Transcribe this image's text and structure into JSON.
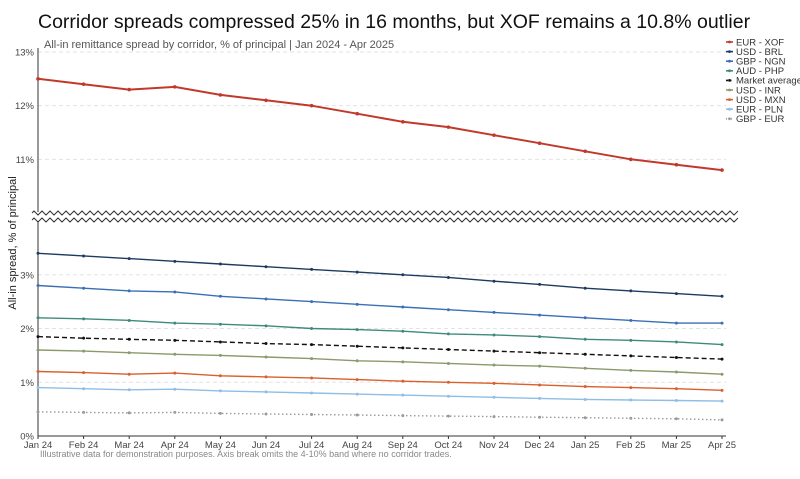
{
  "chart_data": {
    "type": "line",
    "title": "Corridor spreads compressed 25% in 16 months, but XOF remains a 10.8% outlier",
    "subtitle": "All-in remittance spread by corridor, % of principal | Jan 2024 - Apr 2025",
    "ylabel": "All-in spread, % of principal",
    "footnote": "Illustrative data for demonstration purposes. Axis break omits the 4-10% band where no corridor trades.",
    "y_axis_break": [
      4,
      10
    ],
    "lower_ylim": [
      0,
      4
    ],
    "upper_ylim": [
      10,
      13
    ],
    "yticks_lower": [
      0,
      1,
      2,
      3
    ],
    "yticks_upper": [
      11,
      12,
      13
    ],
    "ytick_labels_lower": [
      "0%",
      "1%",
      "2%",
      "3%"
    ],
    "ytick_labels_upper": [
      "11%",
      "12%",
      "13%"
    ],
    "grid": true,
    "legend_position": "top-right",
    "categories": [
      "Jan 24",
      "Feb 24",
      "Mar 24",
      "Apr 24",
      "May 24",
      "Jun 24",
      "Jul 24",
      "Aug 24",
      "Sep 24",
      "Oct 24",
      "Nov 24",
      "Dec 24",
      "Jan 25",
      "Feb 25",
      "Mar 25",
      "Apr 25"
    ],
    "series": [
      {
        "name": "EUR - XOF",
        "color": "#c0392b",
        "style": "solid",
        "values": [
          12.5,
          12.4,
          12.3,
          12.35,
          12.2,
          12.1,
          12.0,
          11.85,
          11.7,
          11.6,
          11.45,
          11.3,
          11.15,
          11.0,
          10.9,
          10.8
        ]
      },
      {
        "name": "USD - BRL",
        "color": "#1f3a5f",
        "style": "solid",
        "values": [
          3.4,
          3.35,
          3.3,
          3.25,
          3.2,
          3.15,
          3.1,
          3.05,
          3.0,
          2.95,
          2.88,
          2.82,
          2.75,
          2.7,
          2.65,
          2.6
        ]
      },
      {
        "name": "GBP - NGN",
        "color": "#3a6fb5",
        "style": "solid",
        "values": [
          2.8,
          2.75,
          2.7,
          2.68,
          2.6,
          2.55,
          2.5,
          2.45,
          2.4,
          2.35,
          2.3,
          2.25,
          2.2,
          2.15,
          2.1,
          2.1
        ]
      },
      {
        "name": "AUD - PHP",
        "color": "#3f8a7a",
        "style": "solid",
        "values": [
          2.2,
          2.18,
          2.15,
          2.1,
          2.08,
          2.05,
          2.0,
          1.98,
          1.95,
          1.9,
          1.88,
          1.85,
          1.8,
          1.78,
          1.75,
          1.7
        ]
      },
      {
        "name": "Market average",
        "color": "#111111",
        "style": "dashed",
        "values": [
          1.85,
          1.82,
          1.8,
          1.78,
          1.75,
          1.72,
          1.7,
          1.67,
          1.64,
          1.61,
          1.58,
          1.55,
          1.52,
          1.49,
          1.46,
          1.43
        ]
      },
      {
        "name": "USD - INR",
        "color": "#8a9a6a",
        "style": "solid",
        "values": [
          1.6,
          1.58,
          1.55,
          1.52,
          1.5,
          1.47,
          1.44,
          1.4,
          1.38,
          1.35,
          1.32,
          1.3,
          1.26,
          1.22,
          1.19,
          1.15
        ]
      },
      {
        "name": "USD - MXN",
        "color": "#d9602b",
        "style": "solid",
        "values": [
          1.2,
          1.18,
          1.15,
          1.17,
          1.12,
          1.1,
          1.08,
          1.05,
          1.02,
          1.0,
          0.98,
          0.95,
          0.92,
          0.9,
          0.88,
          0.85
        ]
      },
      {
        "name": "EUR - PLN",
        "color": "#8fbde6",
        "style": "solid",
        "values": [
          0.9,
          0.88,
          0.86,
          0.87,
          0.84,
          0.82,
          0.8,
          0.78,
          0.76,
          0.74,
          0.72,
          0.7,
          0.68,
          0.67,
          0.66,
          0.65
        ]
      },
      {
        "name": "GBP - EUR",
        "color": "#9a9a9a",
        "style": "dotted",
        "values": [
          0.45,
          0.44,
          0.43,
          0.44,
          0.42,
          0.41,
          0.4,
          0.39,
          0.38,
          0.37,
          0.36,
          0.35,
          0.34,
          0.33,
          0.32,
          0.3
        ]
      }
    ]
  }
}
